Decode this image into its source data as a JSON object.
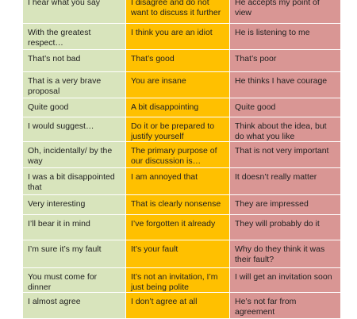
{
  "table": {
    "rows": [
      {
        "a": "I hear what you say",
        "b": "I disagree and do not want to discuss it further",
        "c": "He accepts my point of view"
      },
      {
        "a": "With the greatest respect…",
        "b": "I think you are an idiot",
        "c": "He is listening to me"
      },
      {
        "a": "That’s not bad",
        "b": "That’s good",
        "c": "That’s poor"
      },
      {
        "a": "That is a very brave proposal",
        "b": "You are insane",
        "c": "He thinks I have courage"
      },
      {
        "a": "Quite good",
        "b": "A bit disappointing",
        "c": "Quite good"
      },
      {
        "a": "I would suggest…",
        "b": "Do it or be prepared to justify yourself",
        "c": "Think about the idea, but do what you like"
      },
      {
        "a": "Oh, incidentally/ by the way",
        "b": "The primary purpose of our discussion is…",
        "c": "That is not very important"
      },
      {
        "a": "I was a bit disappointed that",
        "b": "I am annoyed that",
        "c": "It doesn’t really matter"
      },
      {
        "a": "Very interesting",
        "b": "That is clearly nonsense",
        "c": "They are impressed"
      },
      {
        "a": "I’ll bear it in mind",
        "b": "I’ve forgotten it already",
        "c": "They will probably do it"
      },
      {
        "a": "I’m sure it’s my fault",
        "b": "It’s your fault",
        "c": "Why do they think it was their fault?"
      },
      {
        "a": "You must come for dinner",
        "b": "It’s not an invitation, I’m just being polite",
        "c": "I will get an invitation soon"
      },
      {
        "a": "I almost agree",
        "b": "I don’t agree at all",
        "c": "He’s not far from agreement"
      }
    ]
  },
  "colors": {
    "col1": "#d8e4bc",
    "col2": "#ffc000",
    "col3": "#d99694"
  }
}
